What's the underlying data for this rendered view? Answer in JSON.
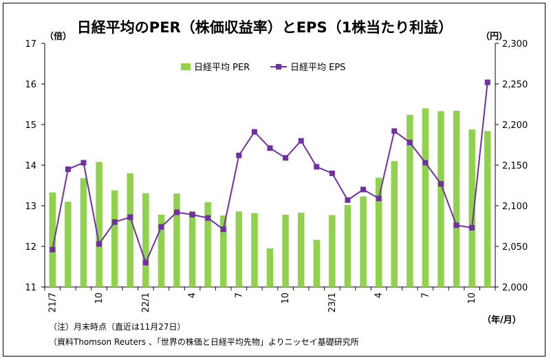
{
  "chart_data": {
    "type": "bar",
    "title": "日経平均のPER（株価収益率）とEPS（1株当たり利益）",
    "left_unit": "（倍）",
    "right_unit": "（円）",
    "x_unit": "（年/月）",
    "legend": [
      {
        "name": "日経平均 PER",
        "type": "bar",
        "color": "#92d050"
      },
      {
        "name": "日経平均 EPS",
        "type": "line",
        "color": "#7030a0"
      }
    ],
    "y_left": {
      "min": 11,
      "max": 17,
      "ticks": [
        "11",
        "12",
        "13",
        "14",
        "15",
        "16",
        "17"
      ]
    },
    "y_right": {
      "min": 2000,
      "max": 2300,
      "ticks": [
        "2,000",
        "2,050",
        "2,100",
        "2,150",
        "2,200",
        "2,250",
        "2,300"
      ]
    },
    "x_labels": [
      "21/7",
      "",
      "",
      "10",
      "",
      "",
      "22/1",
      "",
      "",
      "4",
      "",
      "",
      "7",
      "",
      "",
      "10",
      "",
      "",
      "23/1",
      "",
      "",
      "4",
      "",
      "",
      "7",
      "",
      "",
      "10",
      ""
    ],
    "series": [
      {
        "name": "日経平均 PER",
        "axis": "left",
        "values": [
          13.33,
          13.1,
          13.68,
          14.08,
          13.38,
          13.8,
          13.31,
          12.78,
          13.3,
          12.87,
          13.09,
          12.76,
          12.86,
          12.82,
          11.95,
          12.78,
          12.83,
          12.16,
          12.77,
          13.02,
          13.23,
          13.69,
          14.1,
          15.24,
          15.4,
          15.33,
          15.34,
          14.88,
          14.84
        ]
      },
      {
        "name": "日経平均 EPS",
        "axis": "right",
        "values": [
          2046,
          2145,
          2153,
          2053,
          2080,
          2086,
          2030,
          2074,
          2092,
          2089,
          2085,
          2071,
          2162,
          2191,
          2171,
          2159,
          2180,
          2148,
          2140,
          2107,
          2120,
          2109,
          2192,
          2178,
          2153,
          2127,
          2076,
          2073,
          2252
        ]
      }
    ]
  },
  "notes": [
    "（注）月末時点（直近は11月27日）",
    "（資料Thomson Reuters 、「世界の株価と日経平均先物」よりニッセイ基礎研究所"
  ]
}
